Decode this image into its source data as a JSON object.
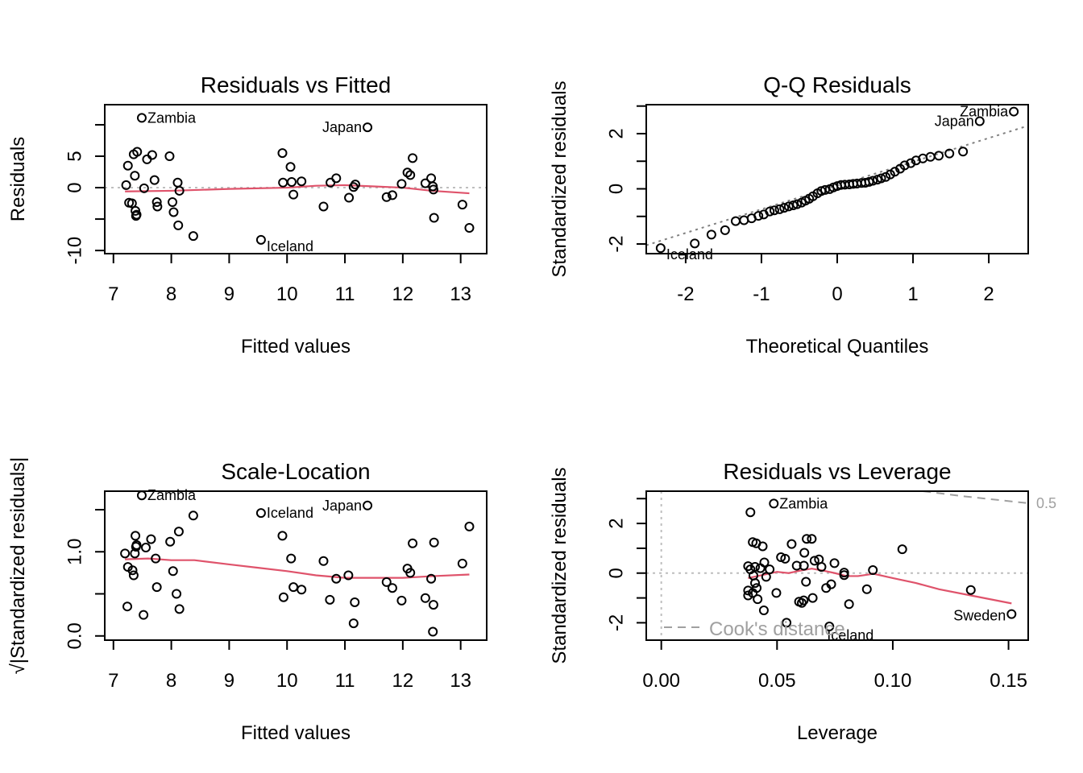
{
  "chart_data": [
    {
      "id": "resid-fitted",
      "type": "scatter",
      "title": "Residuals vs Fitted",
      "xlabel": "Fitted values",
      "ylabel": "Residuals",
      "xlim": [
        6.85,
        13.45
      ],
      "ylim": [
        -10.5,
        13.2
      ],
      "xticks": [
        7,
        8,
        9,
        10,
        11,
        12,
        13
      ],
      "yticks": [
        -10,
        -5,
        0,
        5,
        10
      ],
      "ytick_labels": [
        "-10",
        "",
        "0",
        "5",
        ""
      ],
      "reference_line": {
        "y": 0,
        "style": "dotted"
      },
      "points": [
        [
          7.49,
          11.1
        ],
        [
          7.35,
          5.3
        ],
        [
          7.58,
          4.5
        ],
        [
          7.25,
          3.5
        ],
        [
          7.67,
          5.2
        ],
        [
          7.97,
          5.0
        ],
        [
          7.41,
          5.7
        ],
        [
          7.37,
          1.9
        ],
        [
          7.22,
          0.4
        ],
        [
          7.53,
          -0.1
        ],
        [
          7.71,
          1.2
        ],
        [
          8.11,
          0.8
        ],
        [
          8.14,
          -0.5
        ],
        [
          7.27,
          -2.4
        ],
        [
          7.32,
          -2.5
        ],
        [
          7.38,
          -3.7
        ],
        [
          7.4,
          -4.3
        ],
        [
          7.39,
          -4.5
        ],
        [
          7.75,
          -2.3
        ],
        [
          7.76,
          -3.0
        ],
        [
          8.02,
          -2.3
        ],
        [
          8.04,
          -3.9
        ],
        [
          8.12,
          -6.0
        ],
        [
          8.38,
          -7.7
        ],
        [
          9.55,
          -8.3
        ],
        [
          11.39,
          9.6
        ],
        [
          9.92,
          5.5
        ],
        [
          10.06,
          3.3
        ],
        [
          9.93,
          0.8
        ],
        [
          10.08,
          0.9
        ],
        [
          10.25,
          1.0
        ],
        [
          10.11,
          -1.1
        ],
        [
          10.63,
          -3.0
        ],
        [
          10.75,
          0.8
        ],
        [
          10.85,
          1.5
        ],
        [
          11.07,
          -1.6
        ],
        [
          11.18,
          0.5
        ],
        [
          11.15,
          0.1
        ],
        [
          11.72,
          -1.5
        ],
        [
          11.82,
          -1.2
        ],
        [
          11.98,
          0.6
        ],
        [
          12.08,
          2.4
        ],
        [
          12.17,
          4.7
        ],
        [
          12.13,
          2.0
        ],
        [
          12.39,
          0.7
        ],
        [
          12.49,
          1.5
        ],
        [
          12.52,
          0.2
        ],
        [
          12.53,
          -0.3
        ],
        [
          12.54,
          -4.8
        ],
        [
          13.03,
          -2.7
        ],
        [
          13.15,
          -6.4
        ]
      ],
      "labels": [
        {
          "text": "Zambia",
          "x": 7.49,
          "y": 11.1
        },
        {
          "text": "Japan",
          "x": 11.39,
          "y": 9.6
        },
        {
          "text": "Iceland",
          "x": 9.55,
          "y": -8.3
        }
      ],
      "smooth": [
        [
          7.2,
          -0.6
        ],
        [
          8.0,
          -0.5
        ],
        [
          9.0,
          -0.2
        ],
        [
          10.0,
          0.0
        ],
        [
          10.5,
          0.3
        ],
        [
          11.0,
          0.4
        ],
        [
          11.5,
          0.2
        ],
        [
          12.0,
          0.0
        ],
        [
          12.5,
          -0.5
        ],
        [
          13.15,
          -0.9
        ]
      ]
    },
    {
      "id": "qq",
      "type": "scatter",
      "title": "Q-Q Residuals",
      "xlabel": "Theoretical Quantiles",
      "ylabel": "Standardized residuals",
      "xlim": [
        -2.52,
        2.52
      ],
      "ylim": [
        -2.35,
        3.05
      ],
      "xticks": [
        -2,
        -1,
        0,
        1,
        2
      ],
      "yticks": [
        -2,
        -1,
        0,
        1,
        2,
        3
      ],
      "ytick_labels": [
        "-2",
        "",
        "0",
        "",
        "2",
        ""
      ],
      "qqline": {
        "intercept": 0.12,
        "slope": 0.86
      },
      "points": [
        [
          -2.33,
          -2.15
        ],
        [
          -1.88,
          -1.98
        ],
        [
          -1.66,
          -1.66
        ],
        [
          -1.48,
          -1.5
        ],
        [
          -1.34,
          -1.17
        ],
        [
          -1.23,
          -1.14
        ],
        [
          -1.13,
          -1.07
        ],
        [
          -1.04,
          -0.98
        ],
        [
          -0.97,
          -0.93
        ],
        [
          -0.89,
          -0.82
        ],
        [
          -0.83,
          -0.78
        ],
        [
          -0.76,
          -0.74
        ],
        [
          -0.7,
          -0.69
        ],
        [
          -0.64,
          -0.64
        ],
        [
          -0.58,
          -0.6
        ],
        [
          -0.53,
          -0.56
        ],
        [
          -0.47,
          -0.5
        ],
        [
          -0.42,
          -0.43
        ],
        [
          -0.37,
          -0.36
        ],
        [
          -0.32,
          -0.27
        ],
        [
          -0.26,
          -0.16
        ],
        [
          -0.21,
          -0.08
        ],
        [
          -0.16,
          -0.04
        ],
        [
          -0.1,
          -0.01
        ],
        [
          -0.05,
          0.05
        ],
        [
          0.0,
          0.1
        ],
        [
          0.05,
          0.14
        ],
        [
          0.1,
          0.15
        ],
        [
          0.16,
          0.16
        ],
        [
          0.21,
          0.18
        ],
        [
          0.26,
          0.19
        ],
        [
          0.32,
          0.21
        ],
        [
          0.37,
          0.22
        ],
        [
          0.42,
          0.25
        ],
        [
          0.47,
          0.29
        ],
        [
          0.53,
          0.33
        ],
        [
          0.58,
          0.38
        ],
        [
          0.64,
          0.43
        ],
        [
          0.7,
          0.52
        ],
        [
          0.76,
          0.62
        ],
        [
          0.83,
          0.73
        ],
        [
          0.89,
          0.85
        ],
        [
          0.97,
          0.93
        ],
        [
          1.04,
          1.03
        ],
        [
          1.13,
          1.1
        ],
        [
          1.23,
          1.16
        ],
        [
          1.34,
          1.2
        ],
        [
          1.48,
          1.28
        ],
        [
          1.66,
          1.35
        ],
        [
          1.88,
          2.45
        ],
        [
          2.33,
          2.8
        ]
      ],
      "labels": [
        {
          "text": "Zambia",
          "x": 2.33,
          "y": 2.8
        },
        {
          "text": "Japan",
          "x": 1.88,
          "y": 2.45
        },
        {
          "text": "Iceland",
          "x": -2.33,
          "y": -2.15
        }
      ]
    },
    {
      "id": "scale-location",
      "type": "scatter",
      "title": "Scale-Location",
      "xlabel": "Fitted values",
      "ylabel": "√|Standardized residuals|",
      "xlim": [
        6.85,
        13.45
      ],
      "ylim": [
        -0.05,
        1.72
      ],
      "xticks": [
        7,
        8,
        9,
        10,
        11,
        12,
        13
      ],
      "yticks": [
        0.0,
        0.5,
        1.0,
        1.5
      ],
      "ytick_labels": [
        "0.0",
        "",
        "1.0",
        ""
      ],
      "points": [
        [
          7.49,
          1.67
        ],
        [
          8.38,
          1.43
        ],
        [
          8.13,
          1.24
        ],
        [
          7.38,
          1.19
        ],
        [
          7.65,
          1.15
        ],
        [
          7.98,
          1.12
        ],
        [
          7.4,
          1.08
        ],
        [
          7.39,
          1.06
        ],
        [
          7.56,
          1.05
        ],
        [
          7.2,
          0.98
        ],
        [
          7.37,
          0.98
        ],
        [
          8.03,
          0.77
        ],
        [
          7.73,
          0.92
        ],
        [
          7.25,
          0.82
        ],
        [
          7.33,
          0.78
        ],
        [
          7.35,
          0.72
        ],
        [
          7.75,
          0.58
        ],
        [
          8.09,
          0.5
        ],
        [
          7.24,
          0.35
        ],
        [
          7.52,
          0.25
        ],
        [
          8.14,
          0.32
        ],
        [
          9.55,
          1.46
        ],
        [
          11.39,
          1.55
        ],
        [
          9.92,
          1.19
        ],
        [
          10.07,
          0.92
        ],
        [
          10.85,
          0.68
        ],
        [
          10.25,
          0.55
        ],
        [
          9.94,
          0.46
        ],
        [
          10.11,
          0.58
        ],
        [
          10.63,
          0.89
        ],
        [
          10.74,
          0.43
        ],
        [
          11.06,
          0.72
        ],
        [
          11.17,
          0.4
        ],
        [
          11.15,
          0.15
        ],
        [
          11.72,
          0.64
        ],
        [
          11.82,
          0.57
        ],
        [
          11.98,
          0.42
        ],
        [
          12.08,
          0.8
        ],
        [
          12.13,
          0.75
        ],
        [
          12.17,
          1.1
        ],
        [
          12.39,
          0.45
        ],
        [
          12.49,
          0.68
        ],
        [
          12.53,
          0.37
        ],
        [
          12.54,
          1.11
        ],
        [
          12.52,
          0.05
        ],
        [
          13.03,
          0.86
        ],
        [
          13.15,
          1.3
        ]
      ],
      "labels": [
        {
          "text": "Zambia",
          "x": 7.49,
          "y": 1.67
        },
        {
          "text": "Iceland",
          "x": 9.55,
          "y": 1.46
        },
        {
          "text": "Japan",
          "x": 11.39,
          "y": 1.55
        }
      ],
      "smooth": [
        [
          7.2,
          0.91
        ],
        [
          7.6,
          0.92
        ],
        [
          8.0,
          0.9
        ],
        [
          8.4,
          0.9
        ],
        [
          9.0,
          0.85
        ],
        [
          9.5,
          0.81
        ],
        [
          10.0,
          0.77
        ],
        [
          10.5,
          0.72
        ],
        [
          11.0,
          0.69
        ],
        [
          11.5,
          0.69
        ],
        [
          12.0,
          0.69
        ],
        [
          12.5,
          0.71
        ],
        [
          13.15,
          0.73
        ]
      ]
    },
    {
      "id": "resid-leverage",
      "type": "scatter",
      "title": "Residuals vs Leverage",
      "xlabel": "Leverage",
      "ylabel": "Standardized residuals",
      "xlim": [
        -0.0065,
        0.1585
      ],
      "ylim": [
        -2.7,
        3.3
      ],
      "xticks": [
        0.0,
        0.05,
        0.1,
        0.15
      ],
      "xtick_labels": [
        "0.00",
        "0.05",
        "0.10",
        "0.15"
      ],
      "yticks": [
        -2,
        -1,
        0,
        1,
        2,
        3
      ],
      "ytick_labels": [
        "-2",
        "",
        "0",
        "",
        "2",
        ""
      ],
      "reference_lines": [
        {
          "y": 0,
          "style": "dotted"
        },
        {
          "x": 0,
          "style": "dotted"
        }
      ],
      "legend": {
        "text": "Cook's distance",
        "position": "bottom-left"
      },
      "cook_contour_label": "0.5",
      "cook_contour": [
        [
          0.113,
          3.3
        ],
        [
          0.13,
          3.1
        ],
        [
          0.145,
          2.95
        ],
        [
          0.158,
          2.82
        ]
      ],
      "points": [
        [
          0.0486,
          2.8
        ],
        [
          0.0385,
          2.45
        ],
        [
          0.0395,
          1.25
        ],
        [
          0.041,
          1.2
        ],
        [
          0.0438,
          1.08
        ],
        [
          0.0517,
          0.64
        ],
        [
          0.0535,
          0.58
        ],
        [
          0.0563,
          1.17
        ],
        [
          0.0618,
          0.82
        ],
        [
          0.0628,
          1.38
        ],
        [
          0.065,
          1.38
        ],
        [
          0.0375,
          0.28
        ],
        [
          0.0385,
          0.15
        ],
        [
          0.0405,
          0.25
        ],
        [
          0.0428,
          0.2
        ],
        [
          0.0445,
          0.43
        ],
        [
          0.0468,
          0.15
        ],
        [
          0.0585,
          0.3
        ],
        [
          0.0616,
          0.3
        ],
        [
          0.0662,
          0.5
        ],
        [
          0.0681,
          0.55
        ],
        [
          0.0692,
          0.25
        ],
        [
          0.0748,
          0.4
        ],
        [
          0.079,
          -0.08
        ],
        [
          0.079,
          0.02
        ],
        [
          0.0914,
          0.12
        ],
        [
          0.1041,
          0.96
        ],
        [
          0.0398,
          -0.1
        ],
        [
          0.0405,
          -0.4
        ],
        [
          0.0412,
          -0.6
        ],
        [
          0.0395,
          -0.8
        ],
        [
          0.0375,
          -0.7
        ],
        [
          0.0375,
          -0.9
        ],
        [
          0.0416,
          -1.05
        ],
        [
          0.0453,
          -0.15
        ],
        [
          0.0497,
          -0.8
        ],
        [
          0.0595,
          -1.15
        ],
        [
          0.0607,
          -1.2
        ],
        [
          0.0615,
          -1.1
        ],
        [
          0.0654,
          -1.0
        ],
        [
          0.0712,
          -0.6
        ],
        [
          0.0625,
          -0.35
        ],
        [
          0.0734,
          -0.45
        ],
        [
          0.0811,
          -1.25
        ],
        [
          0.0888,
          -0.65
        ],
        [
          0.0443,
          -1.5
        ],
        [
          0.0541,
          -2.0
        ],
        [
          0.0726,
          -2.15
        ],
        [
          0.1337,
          -0.68
        ],
        [
          0.1513,
          -1.65
        ]
      ],
      "labels": [
        {
          "text": "Zambia",
          "x": 0.0486,
          "y": 2.8
        },
        {
          "text": "Iceland",
          "x": 0.0726,
          "y": -2.15
        },
        {
          "text": "Sweden",
          "x": 0.1513,
          "y": -1.65
        }
      ],
      "smooth": [
        [
          0.0375,
          -0.2
        ],
        [
          0.045,
          -0.05
        ],
        [
          0.05,
          0.05
        ],
        [
          0.055,
          0.0
        ],
        [
          0.06,
          0.1
        ],
        [
          0.065,
          0.18
        ],
        [
          0.07,
          0.1
        ],
        [
          0.075,
          0.0
        ],
        [
          0.08,
          -0.12
        ],
        [
          0.085,
          -0.12
        ],
        [
          0.09,
          -0.05
        ],
        [
          0.0914,
          -0.02
        ],
        [
          0.1,
          -0.2
        ],
        [
          0.11,
          -0.4
        ],
        [
          0.12,
          -0.65
        ],
        [
          0.1337,
          -0.9
        ],
        [
          0.1513,
          -1.22
        ]
      ]
    }
  ]
}
